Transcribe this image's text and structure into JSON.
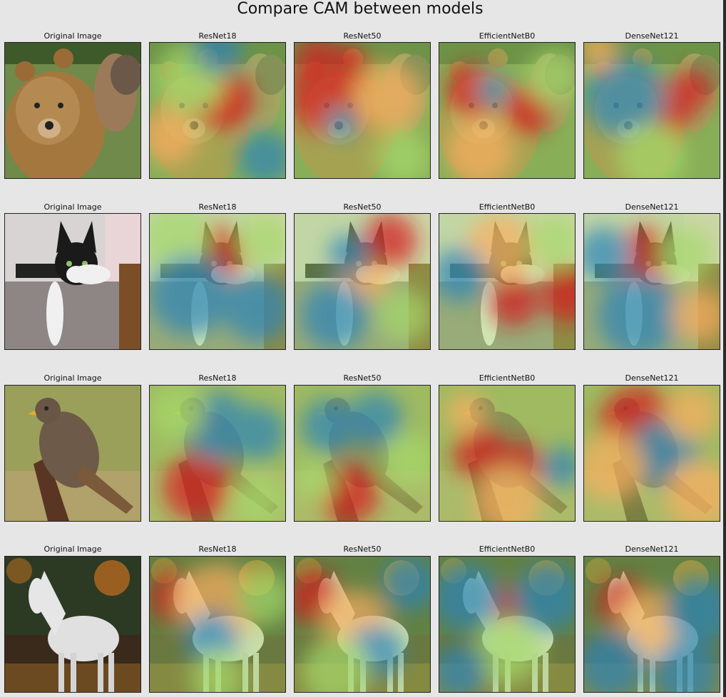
{
  "figure": {
    "suptitle": "Compare CAM between models",
    "columns": [
      "Original Image",
      "ResNet18",
      "ResNet50",
      "EfficientNetB0",
      "DenseNet121"
    ],
    "rows": [
      {
        "subject": "bear",
        "titles": [
          "Original Image",
          "ResNet18",
          "ResNet50",
          "EfficientNetB0",
          "DenseNet121"
        ]
      },
      {
        "subject": "cat",
        "titles": [
          "Original Image",
          "ResNet18",
          "ResNet50",
          "EfficientNetB0",
          "DenseNet121"
        ]
      },
      {
        "subject": "bird",
        "titles": [
          "Original Image",
          "ResNet18",
          "ResNet50",
          "EfficientNetB0",
          "DenseNet121"
        ]
      },
      {
        "subject": "horse",
        "titles": [
          "Original Image",
          "ResNet18",
          "ResNet50",
          "EfficientNetB0",
          "DenseNet121"
        ]
      }
    ]
  },
  "colors": {
    "figure_bg": "#e6e6e6",
    "title_text": "#111111",
    "cam_hot": "#d7191c",
    "cam_warm": "#fdae61",
    "cam_mid": "#a6d96a",
    "cam_cool": "#2b83ba"
  }
}
